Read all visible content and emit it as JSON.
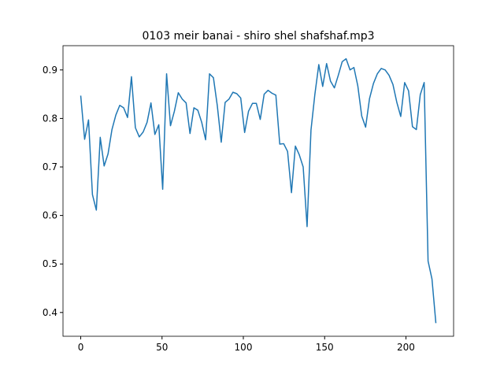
{
  "chart_data": {
    "type": "line",
    "title": "0103 meir banai - shiro shel shafshaf.mp3",
    "color": "#1f77b4",
    "x": [
      0,
      2.4,
      4.8,
      7.2,
      9.6,
      12,
      14.4,
      16.8,
      19.2,
      21.6,
      24,
      26.4,
      28.8,
      31.2,
      33.6,
      36,
      38.4,
      40.8,
      43.2,
      45.6,
      48,
      50.4,
      52.8,
      55.2,
      57.6,
      60,
      62.4,
      64.8,
      67.2,
      69.6,
      72,
      74.4,
      76.8,
      79.2,
      81.6,
      84,
      86.4,
      88.8,
      91.2,
      93.6,
      96,
      98.4,
      100.8,
      103.2,
      105.6,
      108,
      110.4,
      112.8,
      115.2,
      117.6,
      120,
      122.4,
      124.8,
      127.2,
      129.6,
      132,
      134.4,
      136.8,
      139.2,
      141.6,
      144,
      146.4,
      148.8,
      151.2,
      153.6,
      156,
      158.4,
      160.8,
      163.2,
      165.6,
      168,
      170.4,
      172.8,
      175.2,
      177.6,
      180,
      182.4,
      184.8,
      187.2,
      189.6,
      192,
      194.4,
      196.8,
      199.2,
      201.6,
      204,
      206.4,
      208.8,
      211.2,
      213.6,
      216,
      218.4
    ],
    "values": [
      0.847,
      0.757,
      0.797,
      0.643,
      0.611,
      0.761,
      0.702,
      0.727,
      0.777,
      0.807,
      0.827,
      0.822,
      0.802,
      0.886,
      0.781,
      0.762,
      0.772,
      0.792,
      0.832,
      0.767,
      0.787,
      0.654,
      0.892,
      0.785,
      0.815,
      0.853,
      0.84,
      0.832,
      0.769,
      0.822,
      0.817,
      0.792,
      0.756,
      0.892,
      0.884,
      0.826,
      0.751,
      0.833,
      0.84,
      0.854,
      0.851,
      0.842,
      0.771,
      0.815,
      0.831,
      0.831,
      0.798,
      0.85,
      0.858,
      0.852,
      0.848,
      0.747,
      0.748,
      0.732,
      0.647,
      0.743,
      0.725,
      0.7,
      0.577,
      0.776,
      0.85,
      0.911,
      0.866,
      0.913,
      0.877,
      0.863,
      0.889,
      0.917,
      0.923,
      0.9,
      0.905,
      0.867,
      0.805,
      0.782,
      0.841,
      0.872,
      0.892,
      0.903,
      0.9,
      0.889,
      0.87,
      0.833,
      0.804,
      0.874,
      0.857,
      0.783,
      0.777,
      0.849,
      0.874,
      0.506,
      0.469,
      0.378
    ],
    "xlim": [
      -10.9,
      229.3
    ],
    "ylim": [
      0.351,
      0.95
    ],
    "xticks": [
      0,
      50,
      100,
      150,
      200
    ],
    "yticks": [
      0.4,
      0.5,
      0.6,
      0.7,
      0.8,
      0.9
    ]
  }
}
